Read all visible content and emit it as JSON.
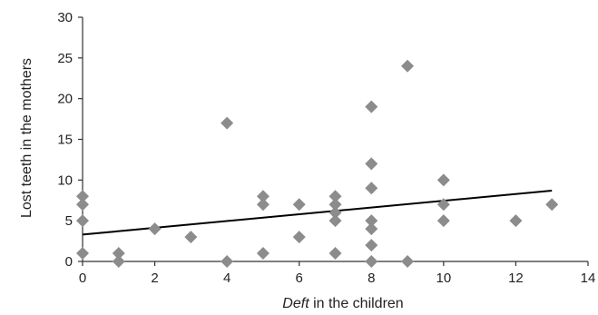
{
  "chart_data": {
    "type": "scatter",
    "xlabel_emph": "Deft",
    "xlabel_rest": " in the children",
    "ylabel": "Lost teeth in the mothers",
    "xlim": [
      0,
      14
    ],
    "ylim": [
      0,
      30
    ],
    "x_ticks": [
      0,
      2,
      4,
      6,
      8,
      10,
      12,
      14
    ],
    "y_ticks": [
      0,
      5,
      10,
      15,
      20,
      25,
      30
    ],
    "x_tick_labels": [
      "0",
      "2",
      "4",
      "6",
      "8",
      "10",
      "12",
      "14"
    ],
    "y_tick_labels": [
      "0",
      "5",
      "10",
      "15",
      "20",
      "25",
      "30"
    ],
    "grid": false,
    "marker_color": "#8c8c8c",
    "trend_color": "#000000",
    "points": [
      {
        "x": 0,
        "y": 8
      },
      {
        "x": 0,
        "y": 7
      },
      {
        "x": 0,
        "y": 5
      },
      {
        "x": 0,
        "y": 1
      },
      {
        "x": 1,
        "y": 1
      },
      {
        "x": 1,
        "y": 0
      },
      {
        "x": 2,
        "y": 4
      },
      {
        "x": 3,
        "y": 3
      },
      {
        "x": 4,
        "y": 17
      },
      {
        "x": 4,
        "y": 0
      },
      {
        "x": 5,
        "y": 8
      },
      {
        "x": 5,
        "y": 7
      },
      {
        "x": 5,
        "y": 1
      },
      {
        "x": 6,
        "y": 7
      },
      {
        "x": 6,
        "y": 3
      },
      {
        "x": 7,
        "y": 8
      },
      {
        "x": 7,
        "y": 7
      },
      {
        "x": 7,
        "y": 6
      },
      {
        "x": 7,
        "y": 5
      },
      {
        "x": 7,
        "y": 1
      },
      {
        "x": 8,
        "y": 19
      },
      {
        "x": 8,
        "y": 12
      },
      {
        "x": 8,
        "y": 9
      },
      {
        "x": 8,
        "y": 5
      },
      {
        "x": 8,
        "y": 4
      },
      {
        "x": 8,
        "y": 2
      },
      {
        "x": 8,
        "y": 0
      },
      {
        "x": 9,
        "y": 24
      },
      {
        "x": 9,
        "y": 0
      },
      {
        "x": 10,
        "y": 10
      },
      {
        "x": 10,
        "y": 7
      },
      {
        "x": 10,
        "y": 5
      },
      {
        "x": 12,
        "y": 5
      },
      {
        "x": 13,
        "y": 7
      }
    ],
    "trend_line": {
      "x": [
        0,
        13
      ],
      "y": [
        3.3,
        8.7
      ]
    }
  }
}
